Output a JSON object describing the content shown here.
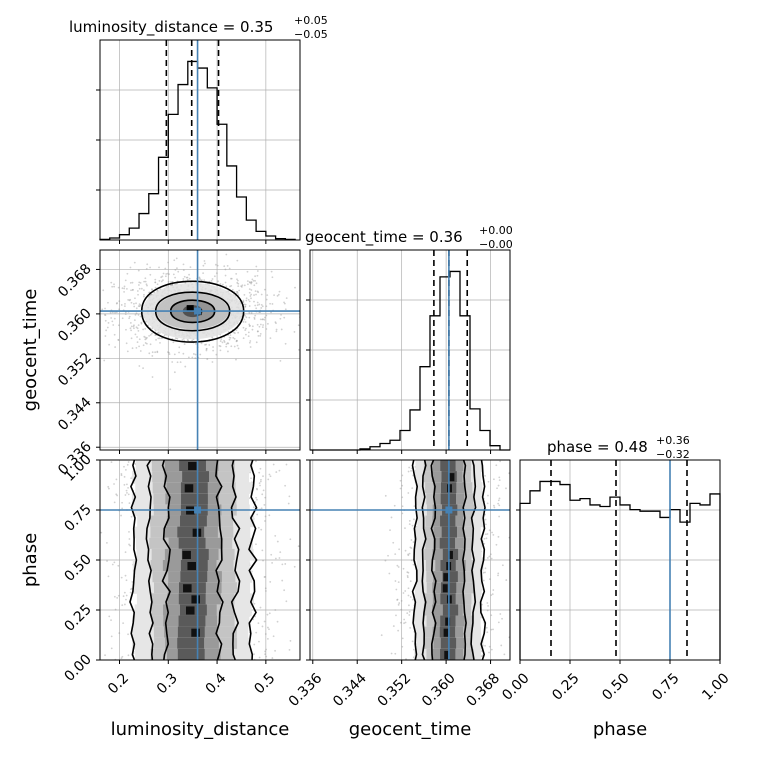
{
  "colors": {
    "truth": "#4682b4",
    "hist": "#000000",
    "grid": "#b0b0b0",
    "scatter": "#9a9a9a"
  },
  "chart_data": {
    "type": "corner",
    "parameters": [
      "luminosity_distance",
      "geocent_time",
      "phase"
    ],
    "truths": {
      "luminosity_distance": 0.36,
      "geocent_time": 0.3605,
      "phase": 0.75
    },
    "grid": true,
    "diagonal": [
      {
        "parameter": "luminosity_distance",
        "title_main": "luminosity_distance = 0.35",
        "title_sup": "+0.05",
        "title_sub": "−0.05",
        "xlim": [
          0.16,
          0.57
        ],
        "quantiles": [
          0.296,
          0.348,
          0.403
        ],
        "bin_edges": [
          0.16,
          0.18,
          0.2,
          0.22,
          0.24,
          0.26,
          0.28,
          0.3,
          0.32,
          0.34,
          0.36,
          0.38,
          0.4,
          0.42,
          0.44,
          0.46,
          0.48,
          0.5,
          0.52,
          0.54,
          0.56
        ],
        "counts": [
          1,
          3,
          8,
          18,
          40,
          70,
          125,
          190,
          235,
          270,
          260,
          230,
          175,
          112,
          65,
          30,
          13,
          6,
          2,
          1
        ]
      },
      {
        "parameter": "geocent_time",
        "title_main": "geocent_time = 0.36",
        "title_sup": "+0.00",
        "title_sub": "−0.00",
        "xlim": [
          0.3355,
          0.3715
        ],
        "quantiles": [
          0.3578,
          0.3605,
          0.3638
        ],
        "bin_edges": [
          0.3355,
          0.3373,
          0.3391,
          0.3409,
          0.3427,
          0.3445,
          0.3463,
          0.3481,
          0.3499,
          0.3517,
          0.3535,
          0.3553,
          0.3571,
          0.3589,
          0.3607,
          0.3625,
          0.3643,
          0.3661,
          0.3679,
          0.3697,
          0.3715
        ],
        "counts": [
          0,
          0,
          0,
          0,
          0,
          1,
          3,
          6,
          9,
          18,
          37,
          77,
          124,
          160,
          165,
          124,
          38,
          18,
          4,
          0
        ]
      },
      {
        "parameter": "phase",
        "title_main": "phase = 0.48",
        "title_sup": "+0.36",
        "title_sub": "−0.32",
        "xlim": [
          0.0,
          1.0
        ],
        "quantiles": [
          0.155,
          0.48,
          0.835
        ],
        "bin_edges": [
          0.0,
          0.05,
          0.1,
          0.15,
          0.2,
          0.25,
          0.3,
          0.35,
          0.4,
          0.45,
          0.5,
          0.55,
          0.6,
          0.65,
          0.7,
          0.75,
          0.8,
          0.85,
          0.9,
          0.95,
          1.0
        ],
        "counts": [
          100,
          108,
          114,
          114,
          112,
          102,
          103,
          99,
          98,
          104,
          99,
          96,
          95,
          95,
          91,
          96,
          88,
          100,
          99,
          106
        ]
      }
    ],
    "axis_ticks": {
      "luminosity_distance": {
        "values": [
          0.2,
          0.3,
          0.4,
          0.5
        ],
        "labels": [
          "0.2",
          "0.3",
          "0.4",
          "0.5"
        ]
      },
      "geocent_time": {
        "values": [
          0.336,
          0.344,
          0.352,
          0.36,
          0.368
        ],
        "labels": [
          "0.336",
          "0.344",
          "0.352",
          "0.360",
          "0.368"
        ]
      },
      "phase": {
        "values": [
          0.0,
          0.25,
          0.5,
          0.75,
          1.0
        ],
        "labels": [
          "0.00",
          "0.25",
          "0.50",
          "0.75",
          "1.00"
        ]
      }
    },
    "axis_labels": {
      "luminosity_distance": "luminosity_distance",
      "geocent_time": "geocent_time",
      "phase": "phase"
    },
    "density_2d": [
      {
        "x": "luminosity_distance",
        "y": "geocent_time",
        "xcenter": 0.35,
        "ycenter": 0.3605,
        "xsigma": 0.05,
        "ysigma": 0.0025
      },
      {
        "x": "luminosity_distance",
        "y": "phase",
        "xcenter": 0.35,
        "xsigma": 0.05
      },
      {
        "x": "geocent_time",
        "y": "phase",
        "xcenter": 0.3605,
        "xsigma": 0.0025
      }
    ]
  }
}
